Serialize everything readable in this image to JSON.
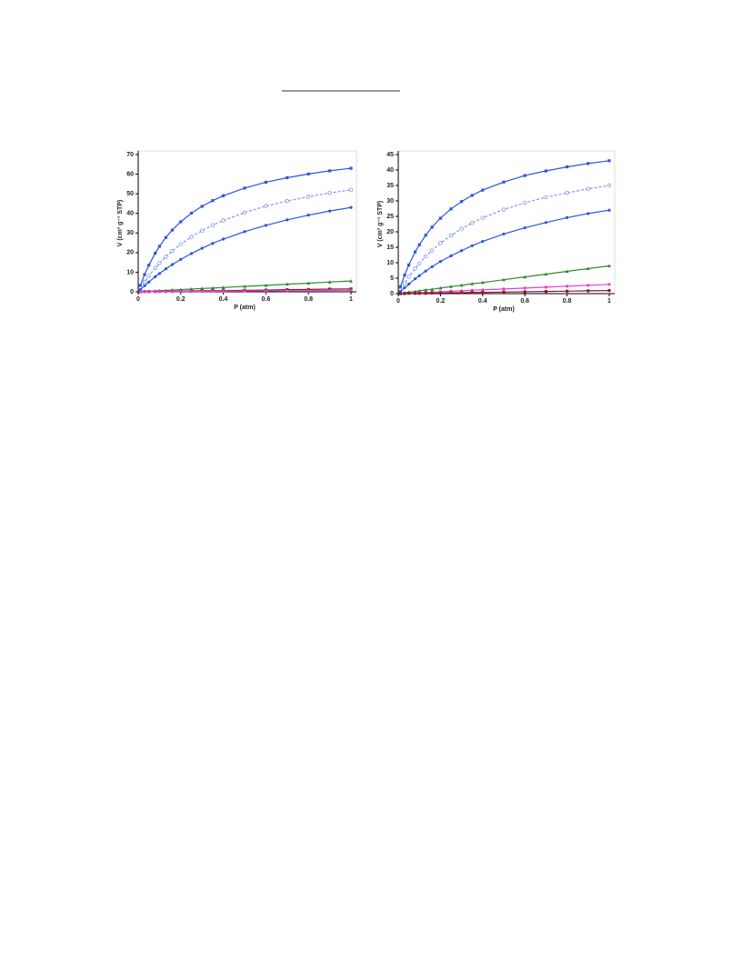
{
  "chart_data": [
    {
      "type": "line",
      "xlabel": "P (atm)",
      "ylabel": "V (cm³ g⁻¹ STP)",
      "x": [
        0.01,
        0.03,
        0.05,
        0.08,
        0.1,
        0.13,
        0.16,
        0.2,
        0.25,
        0.3,
        0.35,
        0.4,
        0.5,
        0.6,
        0.7,
        0.8,
        0.9,
        1.0
      ],
      "xlim": [
        0,
        1
      ],
      "xticks": [
        0,
        0.2,
        0.4,
        0.6,
        0.8,
        1
      ],
      "ylim": [
        0,
        70
      ],
      "yticks": [
        0,
        10,
        20,
        30,
        40,
        50,
        60,
        70
      ],
      "series": [
        {
          "color": "#2a55e0",
          "marker": "square",
          "dashed": false,
          "values": [
            3.2,
            8.8,
            13.6,
            19.7,
            23.2,
            27.7,
            31.5,
            35.7,
            40.1,
            43.6,
            46.5,
            49.0,
            52.9,
            55.9,
            58.2,
            60.1,
            61.7,
            63.0
          ]
        },
        {
          "color": "#7f95e6",
          "marker": "circle-open",
          "dashed": true,
          "values": [
            1.8,
            5.1,
            8.1,
            12.1,
            14.6,
            17.9,
            20.8,
            24.3,
            28.0,
            31.2,
            34.0,
            36.4,
            40.4,
            43.7,
            46.3,
            48.5,
            50.4,
            52.0
          ]
        },
        {
          "color": "#2a55e0",
          "marker": "circle",
          "dashed": false,
          "values": [
            1.1,
            3.1,
            5.0,
            7.7,
            9.3,
            11.7,
            13.9,
            16.5,
            19.5,
            22.2,
            24.7,
            26.9,
            30.7,
            33.9,
            36.7,
            39.1,
            41.2,
            43.0
          ]
        },
        {
          "color": "#2e8b2e",
          "marker": "triangle",
          "dashed": false,
          "values": [
            0.1,
            0.2,
            0.3,
            0.4,
            0.6,
            0.7,
            0.9,
            1.1,
            1.4,
            1.7,
            1.9,
            2.2,
            2.8,
            3.3,
            3.9,
            4.4,
            5.0,
            5.5
          ]
        },
        {
          "color": "#8b1a2a",
          "marker": "square",
          "dashed": false,
          "values": [
            0,
            0.1,
            0.1,
            0.1,
            0.2,
            0.2,
            0.3,
            0.3,
            0.4,
            0.5,
            0.6,
            0.6,
            0.8,
            0.9,
            1.1,
            1.2,
            1.4,
            1.5
          ]
        },
        {
          "color": "#e040d0",
          "marker": "circle",
          "dashed": false,
          "values": [
            0,
            0,
            0,
            0.1,
            0.1,
            0.1,
            0.1,
            0.2,
            0.2,
            0.2,
            0.3,
            0.3,
            0.4,
            0.5,
            0.6,
            0.6,
            0.7,
            0.8
          ]
        }
      ]
    },
    {
      "type": "line",
      "xlabel": "P (atm)",
      "ylabel": "V (cm³ g⁻¹ STP)",
      "x": [
        0.01,
        0.03,
        0.05,
        0.08,
        0.1,
        0.13,
        0.16,
        0.2,
        0.25,
        0.3,
        0.35,
        0.4,
        0.5,
        0.6,
        0.7,
        0.8,
        0.9,
        1.0
      ],
      "xlim": [
        0,
        1
      ],
      "xticks": [
        0,
        0.2,
        0.4,
        0.6,
        0.8,
        1
      ],
      "ylim": [
        0,
        45
      ],
      "yticks": [
        0,
        5,
        10,
        15,
        20,
        25,
        30,
        35,
        40,
        45
      ],
      "series": [
        {
          "color": "#2a55e0",
          "marker": "square",
          "dashed": false,
          "values": [
            2.2,
            6.0,
            9.3,
            13.5,
            15.8,
            18.9,
            21.5,
            24.4,
            27.4,
            29.8,
            31.8,
            33.5,
            36.1,
            38.2,
            39.7,
            41.0,
            42.1,
            43.0
          ]
        },
        {
          "color": "#7f95e6",
          "marker": "circle-open",
          "dashed": true,
          "values": [
            1.2,
            3.4,
            5.5,
            8.1,
            9.8,
            12.0,
            14.0,
            16.4,
            18.8,
            21.0,
            22.9,
            24.5,
            27.2,
            29.4,
            31.2,
            32.6,
            33.9,
            35.0
          ]
        },
        {
          "color": "#2a55e0",
          "marker": "circle",
          "dashed": false,
          "values": [
            0.7,
            1.9,
            3.1,
            4.8,
            5.8,
            7.3,
            8.7,
            10.4,
            12.2,
            13.9,
            15.5,
            16.9,
            19.3,
            21.3,
            23.0,
            24.6,
            25.9,
            27.0
          ]
        },
        {
          "color": "#2e8b2e",
          "marker": "triangle",
          "dashed": false,
          "values": [
            0.1,
            0.3,
            0.5,
            0.7,
            0.9,
            1.2,
            1.4,
            1.8,
            2.3,
            2.7,
            3.2,
            3.6,
            4.5,
            5.4,
            6.3,
            7.2,
            8.1,
            9.0
          ]
        },
        {
          "color": "#e040d0",
          "marker": "circle",
          "dashed": false,
          "values": [
            0,
            0.1,
            0.2,
            0.2,
            0.3,
            0.4,
            0.5,
            0.6,
            0.8,
            0.9,
            1.1,
            1.2,
            1.5,
            1.8,
            2.1,
            2.4,
            2.7,
            3.0
          ]
        },
        {
          "color": "#8b1a2a",
          "marker": "square",
          "dashed": false,
          "values": [
            0,
            0,
            0.1,
            0.1,
            0.1,
            0.1,
            0.2,
            0.2,
            0.3,
            0.3,
            0.4,
            0.4,
            0.5,
            0.6,
            0.7,
            0.8,
            0.9,
            1.0
          ]
        }
      ]
    }
  ]
}
